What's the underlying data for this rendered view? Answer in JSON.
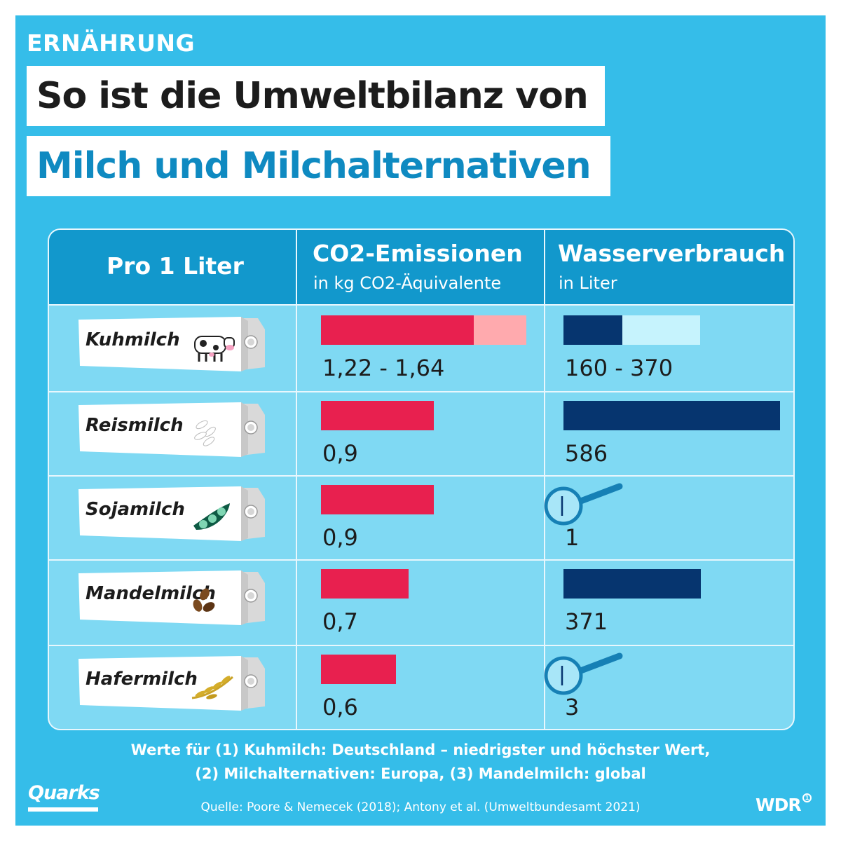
{
  "header": {
    "category": "ERNÄHRUNG",
    "title_line1": "So ist die Umweltbilanz von",
    "title_line2": "Milch und Milchalternativen"
  },
  "table": {
    "col_product_header": "Pro 1 Liter",
    "col_co2_header": "CO2-Emissionen",
    "col_co2_sub": "in kg CO2-Äquivalente",
    "col_water_header": "Wasserverbrauch",
    "col_water_sub": "in Liter"
  },
  "chart_data": {
    "type": "bar",
    "title": "So ist die Umweltbilanz von Milch und Milchalternativen",
    "categories": [
      "Kuhmilch",
      "Reismilch",
      "Sojamilch",
      "Mandelmilch",
      "Hafermilch"
    ],
    "series": [
      {
        "name": "CO2-Emissionen",
        "unit": "in kg CO2-Äquivalente",
        "values": [
          1.22,
          0.9,
          0.9,
          0.7,
          0.6
        ],
        "max_values": [
          1.64,
          null,
          null,
          null,
          null
        ],
        "labels": [
          "1,22 - 1,64",
          "0,9",
          "0,9",
          "0,7",
          "0,6"
        ],
        "colors": {
          "main": "#e8204f",
          "range": "#ffaaae"
        }
      },
      {
        "name": "Wasserverbrauch",
        "unit": "in Liter",
        "values": [
          160,
          586,
          1,
          371,
          3
        ],
        "max_values": [
          370,
          null,
          null,
          null,
          null
        ],
        "labels": [
          "160 - 370",
          "586",
          "1",
          "371",
          "3"
        ],
        "colors": {
          "main": "#06356f",
          "range": "#c6f3fd"
        }
      }
    ],
    "magnified_rows": [
      "Sojamilch",
      "Hafermilch"
    ]
  },
  "footer": {
    "note_line1": "Werte für (1) Kuhmilch: Deutschland – niedrigster und höchster Wert,",
    "note_line2": "(2) Milchalternativen: Europa, (3) Mandelmilch: global",
    "source": "Quelle: Poore & Nemecek (2018); Antony et al. (Umweltbundesamt 2021)",
    "logo_left": "Quarks",
    "logo_right": "WDR"
  },
  "colors": {
    "background": "#35bde9",
    "header_row": "#1298cc",
    "table_body": "#7fd9f3",
    "title_accent": "#0f8ac1",
    "magnifier": "#1680b5"
  }
}
